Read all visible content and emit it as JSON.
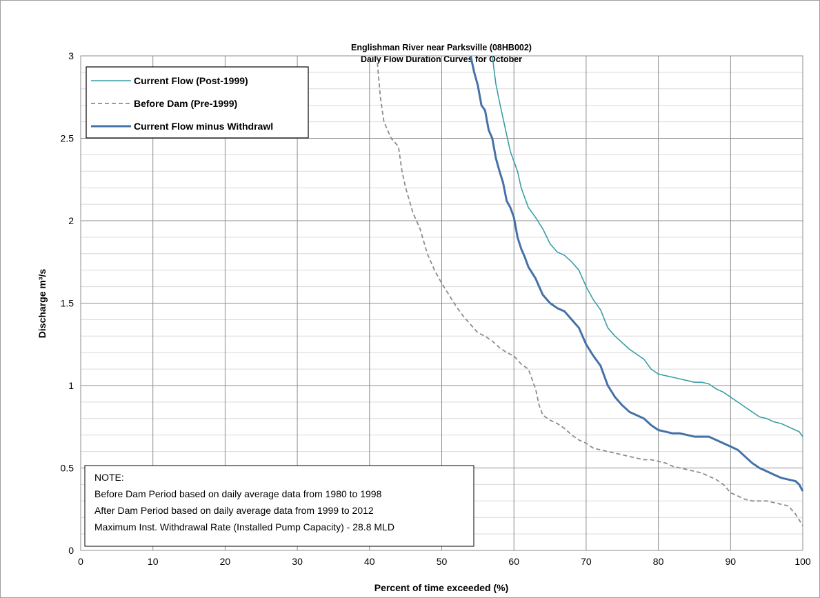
{
  "chart_data": {
    "type": "line",
    "title": "Englishman River near Parksville (08HB002)",
    "subtitle": "Daily Flow Duration Curves for October",
    "xlabel": "Percent of time exceeded (%)",
    "ylabel": "Discharge m³/s",
    "xlim": [
      0,
      100
    ],
    "ylim": [
      0,
      3
    ],
    "xticks": [
      "0",
      "10",
      "20",
      "30",
      "40",
      "50",
      "60",
      "70",
      "80",
      "90",
      "100"
    ],
    "yticks": [
      "0",
      "0.5",
      "1",
      "1.5",
      "2",
      "2.5",
      "3"
    ],
    "grid": true,
    "legend_position": "top-left",
    "series": [
      {
        "name": "Current Flow (Post-1999)",
        "color": "#3a9ea5",
        "dash": "solid",
        "points": [
          [
            57,
            3
          ],
          [
            57.5,
            2.83
          ],
          [
            58,
            2.72
          ],
          [
            58.5,
            2.62
          ],
          [
            59,
            2.52
          ],
          [
            59.5,
            2.42
          ],
          [
            60,
            2.36
          ],
          [
            60.5,
            2.3
          ],
          [
            61,
            2.2
          ],
          [
            62,
            2.08
          ],
          [
            63,
            2.02
          ],
          [
            64,
            1.95
          ],
          [
            65,
            1.86
          ],
          [
            66,
            1.81
          ],
          [
            67,
            1.79
          ],
          [
            68,
            1.75
          ],
          [
            69,
            1.7
          ],
          [
            70,
            1.6
          ],
          [
            71,
            1.52
          ],
          [
            72,
            1.46
          ],
          [
            73,
            1.35
          ],
          [
            74,
            1.3
          ],
          [
            75,
            1.26
          ],
          [
            76,
            1.22
          ],
          [
            77,
            1.19
          ],
          [
            78,
            1.16
          ],
          [
            79,
            1.1
          ],
          [
            80,
            1.07
          ],
          [
            81,
            1.06
          ],
          [
            82,
            1.05
          ],
          [
            83,
            1.04
          ],
          [
            84,
            1.03
          ],
          [
            85,
            1.02
          ],
          [
            86,
            1.02
          ],
          [
            87,
            1.01
          ],
          [
            88,
            0.98
          ],
          [
            89,
            0.96
          ],
          [
            90,
            0.93
          ],
          [
            91,
            0.9
          ],
          [
            92,
            0.87
          ],
          [
            93,
            0.84
          ],
          [
            94,
            0.81
          ],
          [
            95,
            0.8
          ],
          [
            96,
            0.78
          ],
          [
            97,
            0.77
          ],
          [
            98,
            0.75
          ],
          [
            99,
            0.73
          ],
          [
            99.5,
            0.72
          ],
          [
            100,
            0.69
          ]
        ]
      },
      {
        "name": "Before Dam (Pre-1999)",
        "color": "#8c8c8c",
        "dash": "dashed",
        "points": [
          [
            41,
            3
          ],
          [
            41.5,
            2.75
          ],
          [
            42,
            2.6
          ],
          [
            43,
            2.5
          ],
          [
            44,
            2.45
          ],
          [
            44.5,
            2.3
          ],
          [
            45,
            2.2
          ],
          [
            46,
            2.05
          ],
          [
            47,
            1.95
          ],
          [
            48,
            1.8
          ],
          [
            49,
            1.7
          ],
          [
            50,
            1.62
          ],
          [
            51,
            1.55
          ],
          [
            52,
            1.48
          ],
          [
            53,
            1.42
          ],
          [
            54,
            1.37
          ],
          [
            55,
            1.32
          ],
          [
            56,
            1.3
          ],
          [
            57,
            1.27
          ],
          [
            58,
            1.23
          ],
          [
            59,
            1.2
          ],
          [
            60,
            1.18
          ],
          [
            61,
            1.13
          ],
          [
            62,
            1.1
          ],
          [
            63,
            0.98
          ],
          [
            63.5,
            0.88
          ],
          [
            64,
            0.82
          ],
          [
            65,
            0.79
          ],
          [
            66,
            0.77
          ],
          [
            67,
            0.74
          ],
          [
            68,
            0.7
          ],
          [
            69,
            0.67
          ],
          [
            70,
            0.65
          ],
          [
            71,
            0.62
          ],
          [
            72,
            0.61
          ],
          [
            73,
            0.6
          ],
          [
            74,
            0.59
          ],
          [
            75,
            0.58
          ],
          [
            76,
            0.57
          ],
          [
            77,
            0.56
          ],
          [
            78,
            0.55
          ],
          [
            79,
            0.55
          ],
          [
            80,
            0.54
          ],
          [
            81,
            0.53
          ],
          [
            82,
            0.51
          ],
          [
            83,
            0.5
          ],
          [
            84,
            0.49
          ],
          [
            85,
            0.48
          ],
          [
            86,
            0.47
          ],
          [
            87,
            0.45
          ],
          [
            88,
            0.43
          ],
          [
            89,
            0.4
          ],
          [
            90,
            0.35
          ],
          [
            91,
            0.33
          ],
          [
            92,
            0.31
          ],
          [
            93,
            0.3
          ],
          [
            94,
            0.3
          ],
          [
            95,
            0.3
          ],
          [
            96,
            0.29
          ],
          [
            97,
            0.28
          ],
          [
            98,
            0.27
          ],
          [
            99,
            0.22
          ],
          [
            100,
            0.15
          ]
        ]
      },
      {
        "name": "Current Flow minus Withdrawl",
        "color": "#4472a8",
        "dash": "solid",
        "points": [
          [
            54,
            3
          ],
          [
            54.5,
            2.9
          ],
          [
            55,
            2.82
          ],
          [
            55.5,
            2.7
          ],
          [
            56,
            2.67
          ],
          [
            56.5,
            2.55
          ],
          [
            57,
            2.5
          ],
          [
            57.5,
            2.38
          ],
          [
            58,
            2.3
          ],
          [
            58.5,
            2.23
          ],
          [
            59,
            2.12
          ],
          [
            59.5,
            2.08
          ],
          [
            60,
            2.02
          ],
          [
            60.5,
            1.9
          ],
          [
            61,
            1.83
          ],
          [
            61.5,
            1.78
          ],
          [
            62,
            1.72
          ],
          [
            63,
            1.65
          ],
          [
            63.5,
            1.6
          ],
          [
            64,
            1.55
          ],
          [
            65,
            1.5
          ],
          [
            66,
            1.47
          ],
          [
            67,
            1.45
          ],
          [
            68,
            1.4
          ],
          [
            69,
            1.35
          ],
          [
            70,
            1.25
          ],
          [
            71,
            1.18
          ],
          [
            72,
            1.12
          ],
          [
            73,
            1.0
          ],
          [
            74,
            0.93
          ],
          [
            75,
            0.88
          ],
          [
            76,
            0.84
          ],
          [
            77,
            0.82
          ],
          [
            78,
            0.8
          ],
          [
            79,
            0.76
          ],
          [
            80,
            0.73
          ],
          [
            81,
            0.72
          ],
          [
            82,
            0.71
          ],
          [
            83,
            0.71
          ],
          [
            84,
            0.7
          ],
          [
            85,
            0.69
          ],
          [
            86,
            0.69
          ],
          [
            87,
            0.69
          ],
          [
            88,
            0.67
          ],
          [
            89,
            0.65
          ],
          [
            90,
            0.63
          ],
          [
            91,
            0.61
          ],
          [
            92,
            0.57
          ],
          [
            93,
            0.53
          ],
          [
            94,
            0.5
          ],
          [
            95,
            0.48
          ],
          [
            96,
            0.46
          ],
          [
            97,
            0.44
          ],
          [
            98,
            0.43
          ],
          [
            99,
            0.42
          ],
          [
            99.5,
            0.4
          ],
          [
            100,
            0.36
          ]
        ]
      }
    ],
    "note": [
      "NOTE:",
      "Before Dam Period based on daily average data from 1980 to 1998",
      "After Dam Period based on daily average data from 1999 to 2012",
      "Maximum Inst. Withdrawal Rate (Installed Pump Capacity) - 28.8 MLD"
    ]
  }
}
